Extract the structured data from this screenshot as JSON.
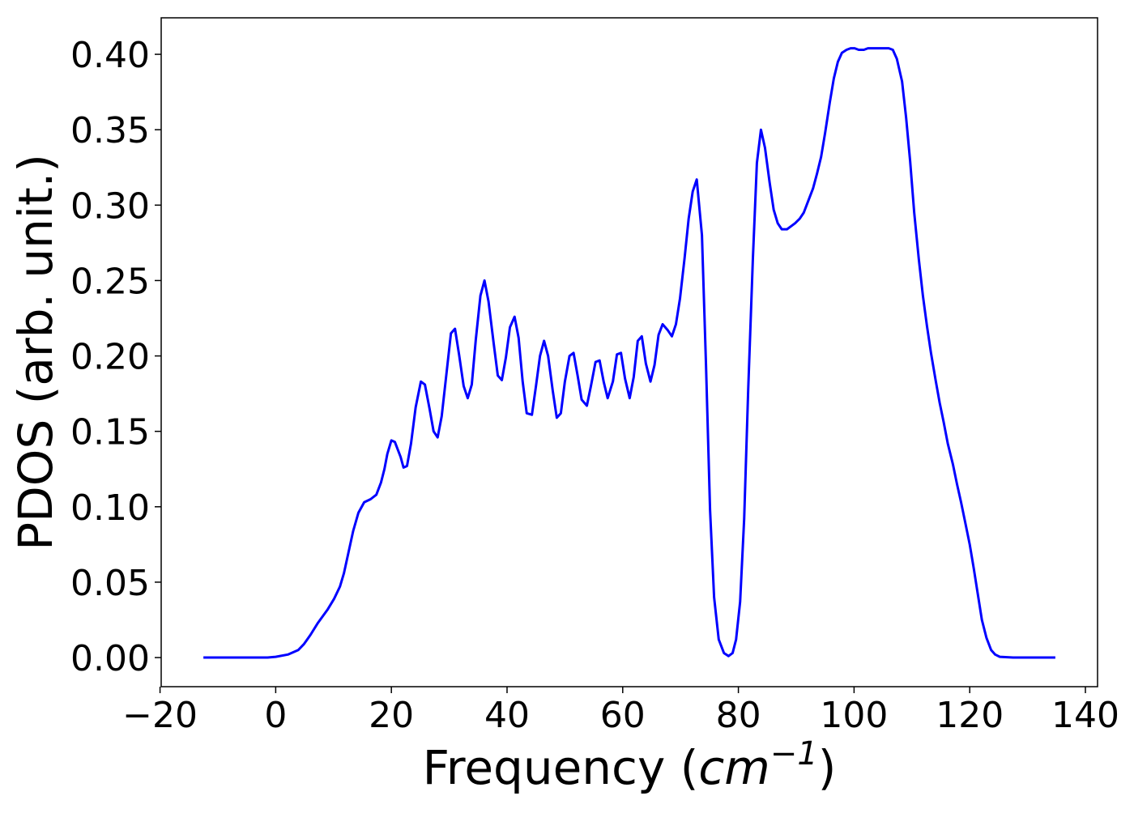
{
  "chart_data": {
    "type": "line",
    "xlabel": [
      "Frequency (",
      "cm",
      "−1",
      ")"
    ],
    "ylabel": "PDOS (arb. unit.)",
    "xlim": [
      -19.8,
      142.1
    ],
    "ylim": [
      -0.0193,
      0.4242
    ],
    "xticks": [
      {
        "value": -20,
        "label": "−20"
      },
      0,
      20,
      40,
      60,
      80,
      100,
      120,
      140
    ],
    "yticks": [
      {
        "value": 0,
        "label": "0.00"
      },
      {
        "value": 0.05,
        "label": "0.05"
      },
      {
        "value": 0.1,
        "label": "0.10"
      },
      {
        "value": 0.15,
        "label": "0.15"
      },
      {
        "value": 0.2,
        "label": "0.20"
      },
      {
        "value": 0.25,
        "label": "0.25"
      },
      {
        "value": 0.3,
        "label": "0.30"
      },
      {
        "value": 0.35,
        "label": "0.35"
      },
      {
        "value": 0.4,
        "label": "0.40"
      }
    ],
    "grid": false,
    "series": [
      {
        "color": "#0000ff",
        "x": [
          -12.5,
          -1.4,
          0,
          2.1,
          3.9,
          4.9,
          6.0,
          7.3,
          9.0,
          10.1,
          11.1,
          11.8,
          12.6,
          13.4,
          14.3,
          15.3,
          16.4,
          17.4,
          18.2,
          18.8,
          19.3,
          20.0,
          20.6,
          21.6,
          22.1,
          22.7,
          23.4,
          24.2,
          25.1,
          25.8,
          26.6,
          27.3,
          28.0,
          28.7,
          29.4,
          30.3,
          31.0,
          31.7,
          32.5,
          33.2,
          33.9,
          34.6,
          35.4,
          36.1,
          36.8,
          37.7,
          38.4,
          39.1,
          39.8,
          40.5,
          41.3,
          42.0,
          42.7,
          43.4,
          44.3,
          45.0,
          45.7,
          46.4,
          47.1,
          47.9,
          48.6,
          49.3,
          50.0,
          50.8,
          51.5,
          52.2,
          52.9,
          53.8,
          54.5,
          55.3,
          56.0,
          56.7,
          57.4,
          58.3,
          59.0,
          59.7,
          60.4,
          61.2,
          61.9,
          62.6,
          63.3,
          64.0,
          64.8,
          65.5,
          66.2,
          66.9,
          67.8,
          68.5,
          69.2,
          69.9,
          70.7,
          71.4,
          72.1,
          72.8,
          73.7,
          74.4,
          75.1,
          75.8,
          76.6,
          77.5,
          78.3,
          79.0,
          79.6,
          80.3,
          81.0,
          81.7,
          82.5,
          83.2,
          83.9,
          84.6,
          85.4,
          86.1,
          86.8,
          87.5,
          88.4,
          89.1,
          89.8,
          90.6,
          91.3,
          92.0,
          92.9,
          93.6,
          94.3,
          95.0,
          95.8,
          96.5,
          97.2,
          97.9,
          98.7,
          99.4,
          100.1,
          100.8,
          101.7,
          102.4,
          103.1,
          103.8,
          104.6,
          105.3,
          106.0,
          106.7,
          107.4,
          108.3,
          109.0,
          109.7,
          110.4,
          111.2,
          111.9,
          112.6,
          113.3,
          114.1,
          114.8,
          115.5,
          116.2,
          117.1,
          117.8,
          118.5,
          119.2,
          120.0,
          120.7,
          121.4,
          122.1,
          122.9,
          123.7,
          124.4,
          125.2,
          127.5,
          134.8
        ],
        "values": [
          0,
          0,
          0.0005,
          0.002,
          0.005,
          0.009,
          0.015,
          0.023,
          0.032,
          0.039,
          0.047,
          0.056,
          0.07,
          0.084,
          0.096,
          0.103,
          0.105,
          0.108,
          0.116,
          0.125,
          0.135,
          0.144,
          0.143,
          0.133,
          0.126,
          0.127,
          0.142,
          0.166,
          0.183,
          0.181,
          0.165,
          0.15,
          0.146,
          0.16,
          0.184,
          0.215,
          0.218,
          0.201,
          0.18,
          0.172,
          0.181,
          0.211,
          0.24,
          0.25,
          0.236,
          0.208,
          0.187,
          0.184,
          0.199,
          0.219,
          0.226,
          0.212,
          0.183,
          0.162,
          0.161,
          0.18,
          0.2,
          0.21,
          0.2,
          0.177,
          0.159,
          0.162,
          0.183,
          0.2,
          0.202,
          0.187,
          0.171,
          0.167,
          0.18,
          0.196,
          0.197,
          0.183,
          0.172,
          0.183,
          0.201,
          0.202,
          0.185,
          0.172,
          0.186,
          0.21,
          0.213,
          0.195,
          0.183,
          0.194,
          0.214,
          0.221,
          0.217,
          0.213,
          0.221,
          0.238,
          0.265,
          0.291,
          0.309,
          0.317,
          0.28,
          0.194,
          0.098,
          0.04,
          0.012,
          0.003,
          0.001,
          0.003,
          0.012,
          0.037,
          0.092,
          0.178,
          0.264,
          0.328,
          0.35,
          0.338,
          0.315,
          0.297,
          0.288,
          0.284,
          0.284,
          0.286,
          0.288,
          0.291,
          0.295,
          0.302,
          0.311,
          0.321,
          0.332,
          0.348,
          0.368,
          0.384,
          0.395,
          0.401,
          0.403,
          0.404,
          0.404,
          0.403,
          0.403,
          0.404,
          0.404,
          0.404,
          0.404,
          0.404,
          0.404,
          0.403,
          0.397,
          0.382,
          0.358,
          0.329,
          0.295,
          0.264,
          0.24,
          0.22,
          0.202,
          0.184,
          0.169,
          0.156,
          0.142,
          0.128,
          0.115,
          0.103,
          0.09,
          0.075,
          0.059,
          0.042,
          0.025,
          0.013,
          0.005,
          0.002,
          0.0005,
          0,
          0
        ]
      }
    ]
  }
}
